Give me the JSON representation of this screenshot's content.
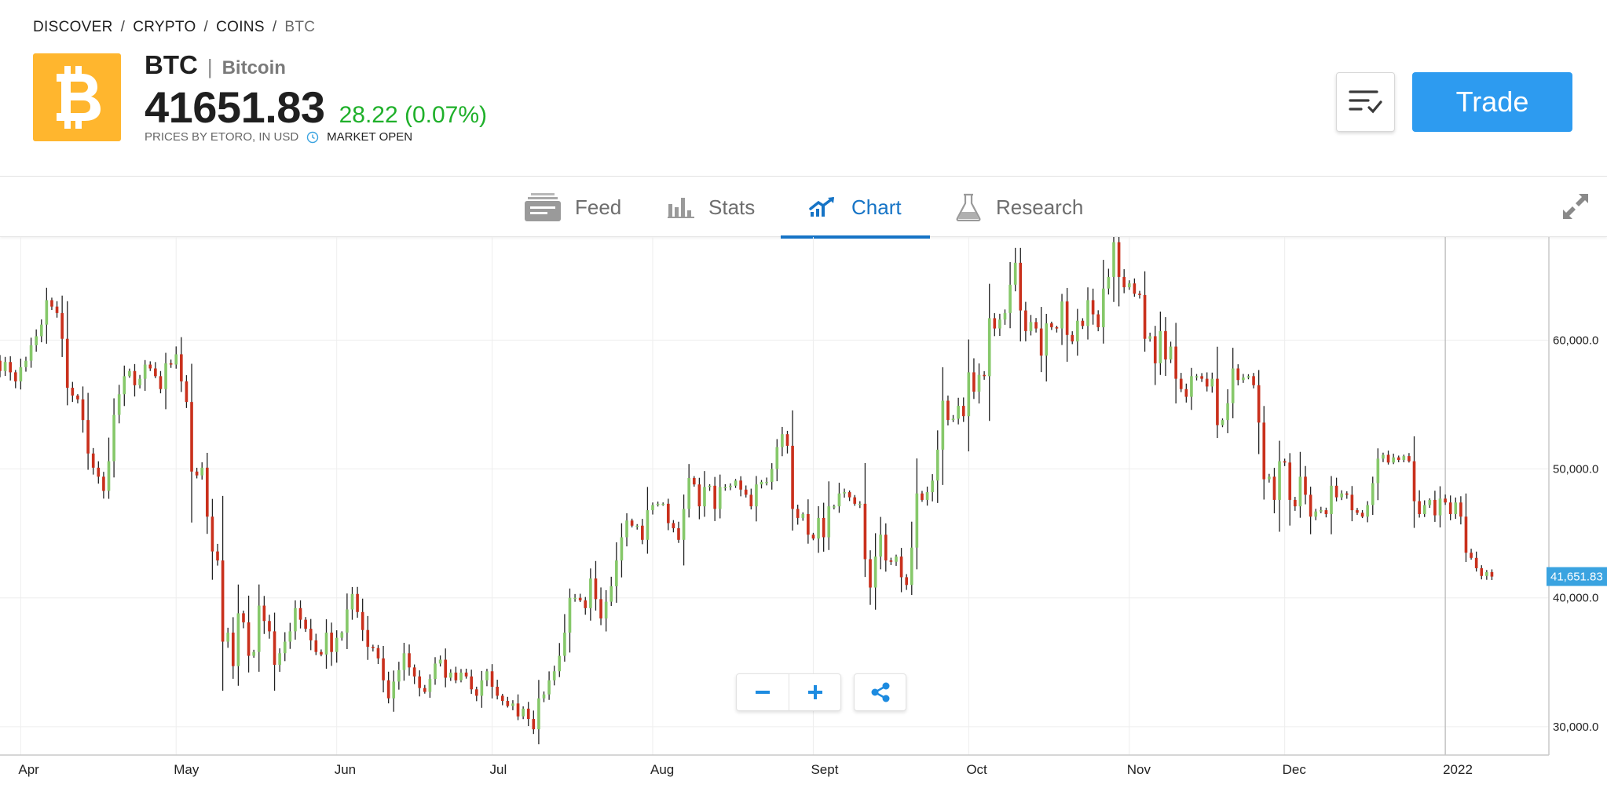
{
  "breadcrumb": {
    "items": [
      "DISCOVER",
      "CRYPTO",
      "COINS"
    ],
    "separator": "/",
    "current": "BTC"
  },
  "header": {
    "logo_icon": "bitcoin-logo",
    "ticker": "BTC",
    "title_separator": "|",
    "name": "Bitcoin",
    "price": "41651.83",
    "change": "28.22 (0.07%)",
    "prices_by": "PRICES BY ETORO, IN USD",
    "market_status": "MARKET OPEN",
    "trade_label": "Trade",
    "watchlist_icon": "watchlist-icon"
  },
  "tabs": [
    {
      "label": "Feed",
      "icon": "feed-icon",
      "active": false
    },
    {
      "label": "Stats",
      "icon": "stats-icon",
      "active": false
    },
    {
      "label": "Chart",
      "icon": "chart-icon",
      "active": true
    },
    {
      "label": "Research",
      "icon": "research-icon",
      "active": false
    }
  ],
  "colors": {
    "accent": "#1674c6",
    "trade_button": "#2d9bf0",
    "positive": "#1fb02a",
    "candle_up": "#86c86a",
    "candle_down": "#c9301c",
    "coin_logo": "#ffb62e",
    "price_tag": "#3aa3e0"
  },
  "chart_data": {
    "type": "candlestick",
    "y_ticks": [
      "30,000.0",
      "40,000.0",
      "50,000.0",
      "60,000.0"
    ],
    "y_values": [
      30000,
      40000,
      50000,
      60000
    ],
    "ylim": [
      27800,
      68000
    ],
    "x_ticks": [
      {
        "label": "Apr",
        "date": "2021-04-01"
      },
      {
        "label": "May",
        "date": "2021-05-01"
      },
      {
        "label": "Jun",
        "date": "2021-06-01"
      },
      {
        "label": "Jul",
        "date": "2021-07-01"
      },
      {
        "label": "Aug",
        "date": "2021-08-01"
      },
      {
        "label": "Sept",
        "date": "2021-09-01"
      },
      {
        "label": "Oct",
        "date": "2021-10-01"
      },
      {
        "label": "Nov",
        "date": "2021-11-01"
      },
      {
        "label": "Dec",
        "date": "2021-12-01"
      },
      {
        "label": "2022",
        "date": "2022-01-01"
      }
    ],
    "xlim": [
      "2021-03-28",
      "2022-01-21"
    ],
    "last_date": "2022-01-10",
    "current_price": 41651.83,
    "current_price_label": "41,651.83",
    "closes": [
      55000,
      57500,
      58700,
      58900,
      58600,
      58100,
      58400,
      57600,
      58300,
      57500,
      56800,
      57900,
      58400,
      59600,
      60300,
      61200,
      63100,
      62600,
      62100,
      60100,
      56300,
      55700,
      55400,
      53800,
      51200,
      50100,
      49400,
      48300,
      50600,
      54200,
      55800,
      57200,
      57600,
      56500,
      57000,
      58100,
      57800,
      57200,
      56200,
      58200,
      58100,
      58900,
      56800,
      55200,
      49800,
      49500,
      50100,
      46300,
      43600,
      42900,
      36600,
      37300,
      34700,
      38800,
      38100,
      35500,
      35800,
      39400,
      38200,
      37400,
      34800,
      35700,
      36600,
      37400,
      39200,
      38300,
      37600,
      36700,
      35800,
      35600,
      37300,
      35800,
      36900,
      37300,
      39100,
      40300,
      38900,
      37500,
      36200,
      36100,
      35300,
      33600,
      32200,
      33500,
      34400,
      35700,
      34600,
      33900,
      33000,
      32700,
      33700,
      34900,
      35200,
      33800,
      34200,
      33600,
      34200,
      33900,
      32900,
      32400,
      33600,
      34300,
      33100,
      32400,
      32000,
      31600,
      31800,
      30800,
      31400,
      30600,
      29800,
      32200,
      32500,
      33600,
      34300,
      35500,
      37300,
      40000,
      40000,
      39800,
      39200,
      41500,
      39900,
      38400,
      39700,
      40900,
      42900,
      44700,
      46000,
      45600,
      45600,
      44500,
      46800,
      47200,
      47300,
      47300,
      45800,
      45400,
      44500,
      46900,
      49300,
      48800,
      47100,
      48600,
      48700,
      46900,
      48600,
      48600,
      48700,
      49100,
      48400,
      48000,
      47100,
      48800,
      49000,
      49000,
      50000,
      51700,
      52700,
      51800,
      46900,
      46200,
      46500,
      44900,
      44600,
      46200,
      44700,
      47100,
      47100,
      48100,
      48200,
      47800,
      47300,
      47300,
      43000,
      40800,
      43200,
      44900,
      42900,
      42800,
      43200,
      41600,
      41000,
      43900,
      48100,
      47600,
      48200,
      49100,
      51500,
      55300,
      53800,
      53900,
      54900,
      54100,
      57500,
      56000,
      57300,
      57200,
      61700,
      60900,
      61600,
      62100,
      64300,
      66000,
      62300,
      60700,
      61400,
      60900,
      58800,
      61300,
      61000,
      60900,
      63000,
      60400,
      59900,
      61500,
      61100,
      63100,
      62000,
      61000,
      64000,
      64900,
      67600,
      64900,
      64100,
      64400,
      63600,
      63500,
      60100,
      60300,
      58200,
      60700,
      58500,
      59500,
      57000,
      56200,
      55600,
      57200,
      57200,
      57000,
      56400,
      57000,
      53400,
      53800,
      55100,
      57800,
      56900,
      57100,
      57200,
      56500,
      53600,
      49200,
      49400,
      47600,
      50600,
      50500,
      47600,
      47100,
      49400,
      48000,
      46300,
      46700,
      46800,
      46500,
      48700,
      47800,
      48100,
      48000,
      46800,
      46600,
      46300,
      47200,
      48900,
      50800,
      51100,
      50500,
      50900,
      50700,
      51000,
      50600,
      47500,
      46500,
      47200,
      47600,
      46400,
      47700,
      47400,
      46500,
      47400,
      46300,
      43500,
      43100,
      42300,
      41700,
      42000,
      41650
    ]
  }
}
